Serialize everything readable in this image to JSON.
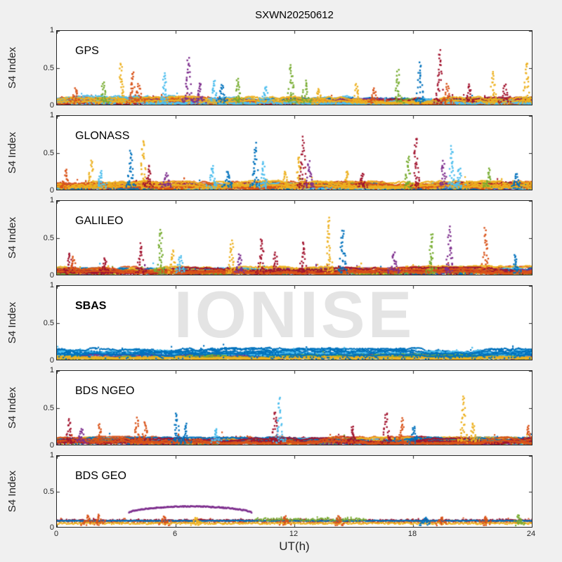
{
  "title": "SXWN20250612",
  "watermark": "IONISE",
  "colors": {
    "background": "#f0f0f0",
    "panel_background": "#ffffff",
    "axis": "#262626",
    "watermark": "#e4e4e4",
    "text": "#000000"
  },
  "palette": [
    "#0072BD",
    "#D95319",
    "#EDB120",
    "#7E2F8E",
    "#77AC30",
    "#4DBEEE",
    "#A2142F"
  ],
  "axes": {
    "xlabel": "UT(h)",
    "ylabel": "S4 Index",
    "xticks": [
      0,
      6,
      12,
      18,
      24
    ],
    "yticks": [
      0,
      0.5,
      1
    ],
    "xlim": [
      0,
      24
    ],
    "ylim": [
      0,
      1
    ]
  },
  "chart_data": {
    "type": "scatter",
    "title": "SXWN20250612",
    "xlabel": "UT(h)",
    "ylabel": "S4 Index",
    "xlim": [
      0,
      24
    ],
    "ylim": [
      0,
      1
    ],
    "grid": false,
    "legend": false,
    "description": "Six stacked panels of GNSS amplitude scintillation S4 index vs universal time; each color is a different satellite (MATLAB default color order). Spikes listed as [time_h, peak_S4, color_index]; baseline bands as [color_index, min_S4, max_S4]; flat bands as [color_index, t_start, t_end, level, amplitude]; arcs as [color_index, t_start, t_end, edge_S4, peak_S4].",
    "panels": [
      {
        "label": "GPS",
        "bold": false,
        "baseline": [
          [
            6,
            0.02,
            0.1
          ],
          [
            1,
            0.03,
            0.11
          ],
          [
            2,
            0.02,
            0.1
          ],
          [
            5,
            0.03,
            0.12
          ],
          [
            0,
            0.02,
            0.09
          ],
          [
            4,
            0.02,
            0.08
          ],
          [
            3,
            0.02,
            0.08
          ],
          [
            6,
            0.02,
            0.09
          ],
          [
            1,
            0.02,
            0.1
          ],
          [
            5,
            0.02,
            0.1
          ],
          [
            2,
            0.03,
            0.11
          ]
        ],
        "spikes": [
          [
            0.9,
            0.22,
            1
          ],
          [
            2.3,
            0.3,
            4
          ],
          [
            3.2,
            0.55,
            2
          ],
          [
            3.8,
            0.45,
            1
          ],
          [
            4.1,
            0.28,
            1
          ],
          [
            5.4,
            0.42,
            5
          ],
          [
            6.6,
            0.63,
            3
          ],
          [
            7.2,
            0.3,
            3
          ],
          [
            7.9,
            0.33,
            5
          ],
          [
            8.3,
            0.28,
            0
          ],
          [
            9.1,
            0.36,
            4
          ],
          [
            10.5,
            0.25,
            5
          ],
          [
            11.8,
            0.55,
            4
          ],
          [
            12.5,
            0.32,
            4
          ],
          [
            13.2,
            0.22,
            2
          ],
          [
            15.1,
            0.28,
            2
          ],
          [
            16.0,
            0.22,
            1
          ],
          [
            17.2,
            0.46,
            4
          ],
          [
            18.3,
            0.56,
            0
          ],
          [
            19.3,
            0.72,
            6
          ],
          [
            19.7,
            0.28,
            1
          ],
          [
            20.8,
            0.28,
            6
          ],
          [
            22.0,
            0.46,
            2
          ],
          [
            22.6,
            0.28,
            6
          ],
          [
            23.7,
            0.58,
            2
          ]
        ],
        "bands": [],
        "arcs": []
      },
      {
        "label": "GLONASS",
        "bold": false,
        "baseline": [
          [
            2,
            0.03,
            0.12
          ],
          [
            1,
            0.03,
            0.11
          ],
          [
            6,
            0.02,
            0.1
          ],
          [
            4,
            0.02,
            0.09
          ],
          [
            3,
            0.02,
            0.08
          ],
          [
            5,
            0.02,
            0.1
          ],
          [
            0,
            0.02,
            0.09
          ],
          [
            2,
            0.02,
            0.11
          ],
          [
            1,
            0.02,
            0.09
          ],
          [
            2,
            0.04,
            0.12
          ]
        ],
        "spikes": [
          [
            0.4,
            0.28,
            1
          ],
          [
            1.7,
            0.4,
            2
          ],
          [
            2.2,
            0.25,
            5
          ],
          [
            3.7,
            0.52,
            0
          ],
          [
            4.3,
            0.68,
            2
          ],
          [
            4.6,
            0.33,
            6
          ],
          [
            5.5,
            0.22,
            3
          ],
          [
            7.8,
            0.32,
            5
          ],
          [
            8.6,
            0.25,
            0
          ],
          [
            10.0,
            0.62,
            0
          ],
          [
            10.4,
            0.38,
            5
          ],
          [
            11.5,
            0.25,
            2
          ],
          [
            12.2,
            0.45,
            2
          ],
          [
            12.4,
            0.7,
            6
          ],
          [
            12.7,
            0.38,
            3
          ],
          [
            14.6,
            0.25,
            2
          ],
          [
            15.4,
            0.22,
            6
          ],
          [
            17.7,
            0.46,
            4
          ],
          [
            18.1,
            0.72,
            6
          ],
          [
            19.5,
            0.38,
            3
          ],
          [
            19.9,
            0.58,
            5
          ],
          [
            20.3,
            0.3,
            5
          ],
          [
            21.8,
            0.28,
            4
          ],
          [
            23.2,
            0.22,
            0
          ]
        ],
        "bands": [],
        "arcs": []
      },
      {
        "label": "GALILEO",
        "bold": false,
        "baseline": [
          [
            1,
            0.03,
            0.11
          ],
          [
            6,
            0.02,
            0.1
          ],
          [
            2,
            0.03,
            0.12
          ],
          [
            5,
            0.02,
            0.09
          ],
          [
            0,
            0.02,
            0.09
          ],
          [
            3,
            0.02,
            0.09
          ],
          [
            4,
            0.02,
            0.08
          ],
          [
            2,
            0.03,
            0.11
          ],
          [
            6,
            0.03,
            0.1
          ],
          [
            1,
            0.02,
            0.09
          ]
        ],
        "spikes": [
          [
            0.6,
            0.3,
            6
          ],
          [
            0.8,
            0.24,
            1
          ],
          [
            2.4,
            0.22,
            6
          ],
          [
            4.2,
            0.42,
            6
          ],
          [
            5.2,
            0.62,
            4
          ],
          [
            5.8,
            0.33,
            2
          ],
          [
            6.2,
            0.26,
            5
          ],
          [
            8.8,
            0.46,
            2
          ],
          [
            9.2,
            0.28,
            3
          ],
          [
            10.3,
            0.5,
            6
          ],
          [
            11.0,
            0.3,
            6
          ],
          [
            12.4,
            0.45,
            6
          ],
          [
            13.7,
            0.78,
            2
          ],
          [
            14.4,
            0.62,
            0
          ],
          [
            17.0,
            0.3,
            3
          ],
          [
            18.9,
            0.56,
            4
          ],
          [
            19.8,
            0.64,
            3
          ],
          [
            21.6,
            0.62,
            1
          ],
          [
            23.1,
            0.26,
            0
          ]
        ],
        "bands": [],
        "arcs": []
      },
      {
        "label": "SBAS",
        "bold": true,
        "baseline": [
          [
            0,
            0.07,
            0.16
          ],
          [
            5,
            0.06,
            0.14
          ],
          [
            0,
            0.08,
            0.15
          ],
          [
            5,
            0.05,
            0.13
          ],
          [
            4,
            0.03,
            0.09
          ],
          [
            0,
            0.07,
            0.14
          ],
          [
            5,
            0.06,
            0.13
          ],
          [
            3,
            0.03,
            0.07
          ],
          [
            4,
            0.02,
            0.07
          ],
          [
            2,
            0.02,
            0.05
          ],
          [
            0,
            0.08,
            0.16
          ]
        ],
        "spikes": [],
        "bands": [],
        "arcs": []
      },
      {
        "label": "BDS NGEO",
        "bold": false,
        "baseline": [
          [
            0,
            0.02,
            0.1
          ],
          [
            6,
            0.03,
            0.11
          ],
          [
            1,
            0.03,
            0.11
          ],
          [
            5,
            0.02,
            0.09
          ],
          [
            3,
            0.02,
            0.08
          ],
          [
            4,
            0.02,
            0.08
          ],
          [
            2,
            0.03,
            0.1
          ],
          [
            0,
            0.03,
            0.1
          ],
          [
            6,
            0.02,
            0.09
          ],
          [
            1,
            0.02,
            0.1
          ]
        ],
        "spikes": [
          [
            0.6,
            0.35,
            6
          ],
          [
            1.2,
            0.22,
            3
          ],
          [
            2.1,
            0.28,
            1
          ],
          [
            4.0,
            0.36,
            1
          ],
          [
            4.4,
            0.3,
            1
          ],
          [
            6.0,
            0.42,
            0
          ],
          [
            6.5,
            0.28,
            0
          ],
          [
            8.0,
            0.22,
            5
          ],
          [
            11.0,
            0.45,
            6
          ],
          [
            11.2,
            0.63,
            5
          ],
          [
            14.9,
            0.25,
            6
          ],
          [
            16.6,
            0.44,
            6
          ],
          [
            17.4,
            0.35,
            1
          ],
          [
            18.0,
            0.25,
            0
          ],
          [
            20.5,
            0.65,
            2
          ],
          [
            21.0,
            0.3,
            2
          ],
          [
            23.8,
            0.25,
            1
          ]
        ],
        "bands": [],
        "arcs": []
      },
      {
        "label": "BDS GEO",
        "bold": false,
        "baseline": [],
        "spikes": [
          [
            1.5,
            0.16,
            1
          ],
          [
            2.1,
            0.17,
            1
          ],
          [
            5.4,
            0.15,
            1
          ],
          [
            7.0,
            0.13,
            2
          ],
          [
            11.5,
            0.15,
            1
          ],
          [
            14.2,
            0.15,
            1
          ],
          [
            18.6,
            0.13,
            0
          ],
          [
            19.4,
            0.14,
            1
          ],
          [
            21.6,
            0.14,
            1
          ],
          [
            23.3,
            0.17,
            4
          ]
        ],
        "bands": [
          [
            1,
            0,
            24,
            0.075,
            0.02
          ],
          [
            2,
            0,
            24,
            0.05,
            0.012
          ],
          [
            6,
            0,
            24,
            0.092,
            0.012
          ],
          [
            0,
            0,
            24,
            0.087,
            0.005
          ],
          [
            4,
            10.0,
            15.6,
            0.105,
            0.02
          ]
        ],
        "arcs": [
          [
            3,
            3.6,
            9.8,
            0.2,
            0.29
          ]
        ]
      }
    ]
  }
}
